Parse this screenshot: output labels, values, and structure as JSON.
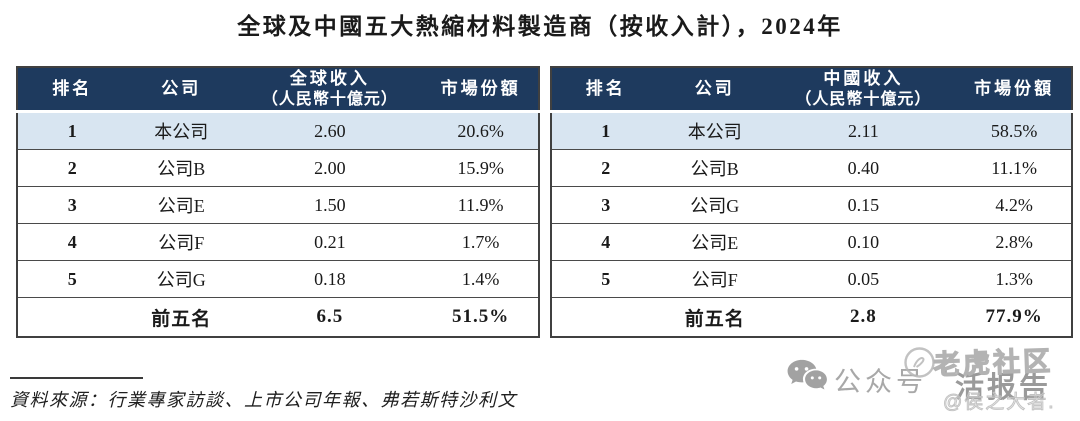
{
  "title": "全球及中國五大熱縮材料製造商（按收入計），2024年",
  "tables": [
    {
      "name": "global-revenue",
      "headers": {
        "rank": "排名",
        "company": "公司",
        "revenue_line1": "全球收入",
        "revenue_line2": "（人民幣十億元）",
        "share": "市場份額"
      },
      "rows": [
        {
          "rank": "1",
          "company": "本公司",
          "revenue": "2.60",
          "share": "20.6%",
          "highlight": true
        },
        {
          "rank": "2",
          "company": "公司B",
          "revenue": "2.00",
          "share": "15.9%"
        },
        {
          "rank": "3",
          "company": "公司E",
          "revenue": "1.50",
          "share": "11.9%"
        },
        {
          "rank": "4",
          "company": "公司F",
          "revenue": "0.21",
          "share": "1.7%"
        },
        {
          "rank": "5",
          "company": "公司G",
          "revenue": "0.18",
          "share": "1.4%"
        }
      ],
      "total": {
        "rank": "",
        "company": "前五名",
        "revenue": "6.5",
        "share": "51.5%"
      }
    },
    {
      "name": "china-revenue",
      "headers": {
        "rank": "排名",
        "company": "公司",
        "revenue_line1": "中國收入",
        "revenue_line2": "（人民幣十億元）",
        "share": "市場份額"
      },
      "rows": [
        {
          "rank": "1",
          "company": "本公司",
          "revenue": "2.11",
          "share": "58.5%",
          "highlight": true
        },
        {
          "rank": "2",
          "company": "公司B",
          "revenue": "0.40",
          "share": "11.1%"
        },
        {
          "rank": "3",
          "company": "公司G",
          "revenue": "0.15",
          "share": "4.2%"
        },
        {
          "rank": "4",
          "company": "公司E",
          "revenue": "0.10",
          "share": "2.8%"
        },
        {
          "rank": "5",
          "company": "公司F",
          "revenue": "0.05",
          "share": "1.3%"
        }
      ],
      "total": {
        "rank": "",
        "company": "前五名",
        "revenue": "2.8",
        "share": "77.9%"
      }
    }
  ],
  "source_note": "資料來源：行業專家訪談、上市公司年報、弗若斯特沙利文",
  "watermark": {
    "account_label": "公众号",
    "separator": "·",
    "brand": "活报告",
    "overlay_community": "老虎社区",
    "overlay_author": "@侯之大者."
  },
  "colors": {
    "header_bg": "#1E3A5E",
    "highlight_row_bg": "#D8E5F1",
    "table_border": "#404040",
    "watermark_gray": "#A8A8A8"
  }
}
